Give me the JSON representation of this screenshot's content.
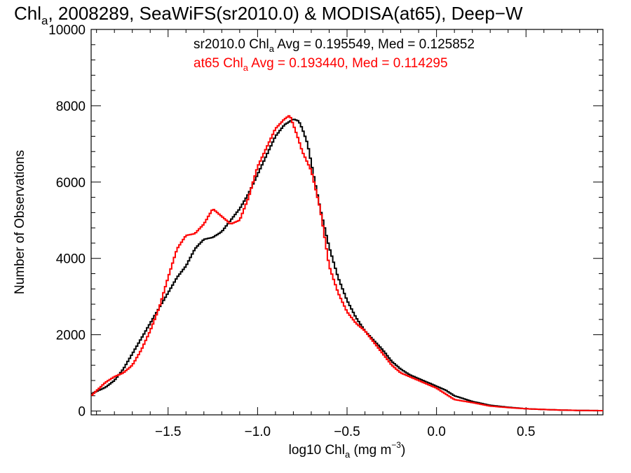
{
  "chart_data": {
    "type": "histogram",
    "title": "Chl_a, 2008289, SeaWiFS(sr2010.0) & MODISA(at65), Deep-W",
    "title_parts": {
      "pre": "Chl",
      "sub": "a",
      "post": ", 2008289, SeaWiFS(sr2010.0) & MODISA(at65), Deep−W"
    },
    "xlabel_parts": {
      "pre": "log10 Chl",
      "sub": "a",
      "mid": " (mg m",
      "sup": "−3",
      "post": ")"
    },
    "ylabel": "Number of Observations",
    "xlim": [
      -1.93,
      0.93
    ],
    "ylim": [
      -100,
      10000
    ],
    "x_ticks": [
      -1.5,
      -1.0,
      -0.5,
      0.0,
      0.5
    ],
    "x_tick_labels": [
      "−1.5",
      "−1.0",
      "−0.5",
      "0.0",
      "0.5"
    ],
    "y_ticks": [
      0,
      2000,
      4000,
      6000,
      8000,
      10000
    ],
    "y_tick_labels": [
      "0",
      "2000",
      "4000",
      "6000",
      "8000",
      "10000"
    ],
    "annotations": [
      {
        "pre": "sr2010.0 Chl",
        "sub": "a",
        "post": " Avg = 0.195549, Med = 0.125852",
        "color": "#000000"
      },
      {
        "pre": "at65 Chl",
        "sub": "a",
        "post": " Avg = 0.193440, Med = 0.114295",
        "color": "#ff0000"
      }
    ],
    "series": [
      {
        "name": "sr2010.0",
        "color": "#000000",
        "x": [
          -1.93,
          -1.85,
          -1.8,
          -1.75,
          -1.7,
          -1.65,
          -1.6,
          -1.55,
          -1.5,
          -1.45,
          -1.4,
          -1.35,
          -1.3,
          -1.25,
          -1.2,
          -1.15,
          -1.1,
          -1.05,
          -1.0,
          -0.95,
          -0.9,
          -0.85,
          -0.8,
          -0.77,
          -0.75,
          -0.72,
          -0.7,
          -0.65,
          -0.6,
          -0.55,
          -0.5,
          -0.45,
          -0.4,
          -0.35,
          -0.3,
          -0.25,
          -0.2,
          -0.15,
          -0.1,
          -0.05,
          0.0,
          0.05,
          0.1,
          0.2,
          0.3,
          0.4,
          0.5,
          0.6,
          0.7,
          0.8,
          0.93
        ],
        "y": [
          450,
          620,
          800,
          1100,
          1500,
          1900,
          2300,
          2700,
          3100,
          3500,
          3800,
          4250,
          4500,
          4550,
          4700,
          5000,
          5300,
          5700,
          6200,
          6700,
          7200,
          7500,
          7650,
          7600,
          7400,
          7000,
          6500,
          5300,
          4300,
          3500,
          2900,
          2450,
          2100,
          1850,
          1600,
          1300,
          1100,
          950,
          850,
          750,
          650,
          550,
          400,
          250,
          150,
          100,
          60,
          40,
          25,
          15,
          10
        ]
      },
      {
        "name": "at65",
        "color": "#ff0000",
        "x": [
          -1.93,
          -1.85,
          -1.8,
          -1.75,
          -1.7,
          -1.65,
          -1.6,
          -1.55,
          -1.5,
          -1.45,
          -1.4,
          -1.35,
          -1.3,
          -1.25,
          -1.2,
          -1.15,
          -1.1,
          -1.05,
          -1.0,
          -0.95,
          -0.9,
          -0.85,
          -0.82,
          -0.8,
          -0.77,
          -0.75,
          -0.7,
          -0.65,
          -0.6,
          -0.55,
          -0.5,
          -0.45,
          -0.4,
          -0.35,
          -0.3,
          -0.25,
          -0.2,
          -0.15,
          -0.1,
          -0.05,
          0.0,
          0.05,
          0.1,
          0.2,
          0.3,
          0.4,
          0.5,
          0.6,
          0.7,
          0.8,
          0.93
        ],
        "y": [
          400,
          750,
          900,
          1000,
          1200,
          1600,
          2100,
          2700,
          3500,
          4250,
          4600,
          4650,
          4900,
          5300,
          5100,
          4900,
          5000,
          5600,
          6400,
          6900,
          7400,
          7650,
          7750,
          7500,
          7100,
          6800,
          6300,
          5300,
          3800,
          3100,
          2600,
          2300,
          2100,
          1800,
          1500,
          1200,
          1000,
          900,
          800,
          700,
          600,
          450,
          300,
          220,
          130,
          90,
          60,
          40,
          25,
          15,
          10
        ]
      }
    ]
  }
}
